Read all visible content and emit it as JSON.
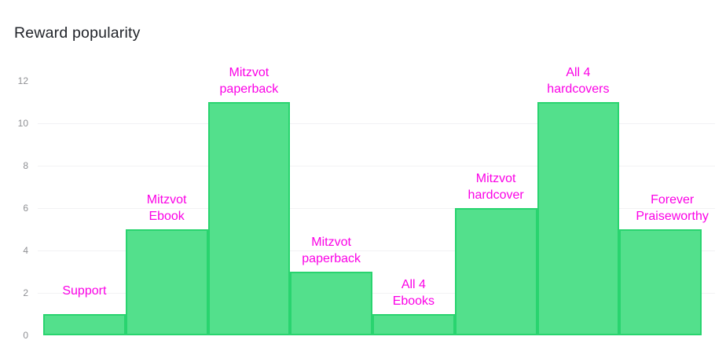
{
  "page": {
    "title": "Reward popularity"
  },
  "chart_data": {
    "type": "bar",
    "title": "Reward popularity",
    "categories": [
      "Support",
      "Mitzvot Ebook",
      "Mitzvot paperback",
      "Mitzvot paperback",
      "All 4 Ebooks",
      "Mitzvot hardcover",
      "All 4 hardcovers",
      "Forever Praiseworthy"
    ],
    "category_label_lines": [
      [
        "Support"
      ],
      [
        "Mitzvot",
        "Ebook"
      ],
      [
        "Mitzvot",
        "paperback"
      ],
      [
        "Mitzvot",
        "paperback"
      ],
      [
        "All 4",
        "Ebooks"
      ],
      [
        "Mitzvot",
        "hardcover"
      ],
      [
        "All 4",
        "hardcovers"
      ],
      [
        "Forever",
        "Praiseworthy"
      ]
    ],
    "values": [
      1,
      5,
      11,
      3,
      1,
      6,
      11,
      5
    ],
    "xlabel": "",
    "ylabel": "",
    "ylim": [
      0,
      12
    ],
    "yticks": [
      0,
      2,
      4,
      6,
      8,
      10,
      12
    ],
    "gridline_values": [
      2,
      4,
      6,
      8,
      10
    ],
    "grid": "horizontal-only",
    "legend": "none",
    "bar_gap": 0,
    "colors": {
      "bar_fill": "#53e08c",
      "bar_border": "#29d46f",
      "data_label": "#fb00e6",
      "tick_label": "#8f9094",
      "gridline": "#f2f2f4",
      "title": "#21242a",
      "background": "#ffffff"
    }
  }
}
